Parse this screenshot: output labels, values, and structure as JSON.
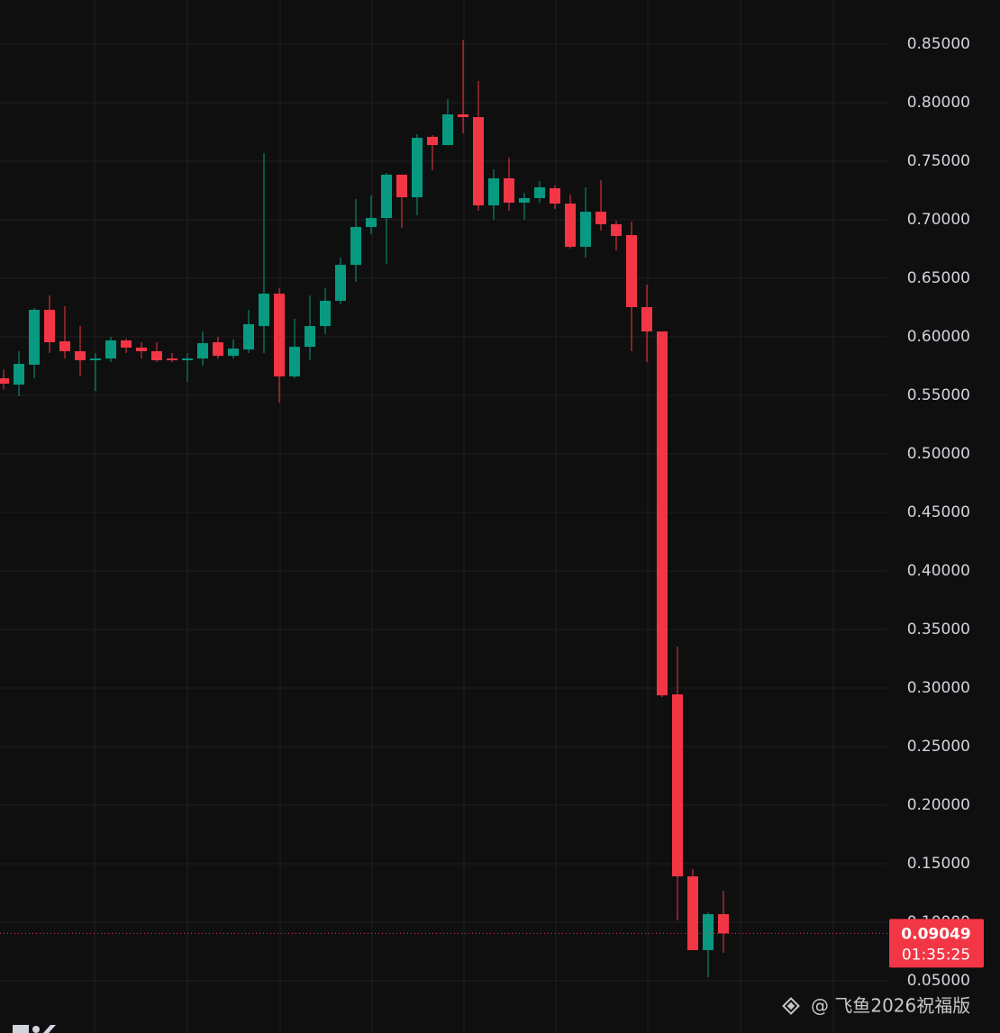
{
  "chart_data": {
    "type": "candlestick",
    "categories": [
      null,
      null,
      null,
      null,
      null,
      null,
      null,
      null,
      null,
      null,
      null,
      null,
      null,
      null,
      null,
      null,
      null,
      null,
      null,
      null,
      null,
      null,
      null,
      null,
      null,
      null,
      null,
      null,
      null,
      null,
      null,
      null,
      null,
      null,
      null,
      null,
      null,
      null,
      null,
      null,
      null,
      null,
      null,
      null,
      null,
      null,
      null,
      null
    ],
    "open": [
      0.5646,
      0.5592,
      0.5762,
      0.6231,
      0.5962,
      0.5877,
      0.58,
      0.5815,
      0.5969,
      0.5908,
      0.5877,
      0.5815,
      0.58,
      0.5815,
      0.5954,
      0.5838,
      0.5892,
      0.6092,
      0.6369,
      0.5662,
      0.5915,
      0.6092,
      0.6308,
      0.6615,
      0.6938,
      0.7015,
      0.7385,
      0.7192,
      0.7708,
      0.7638,
      0.79,
      0.7877,
      0.7123,
      0.7354,
      0.7146,
      0.7185,
      0.7269,
      0.7138,
      0.6769,
      0.7069,
      0.6962,
      0.6869,
      0.6254,
      0.6046,
      0.2946,
      0.1392,
      0.0762,
      0.1069
    ],
    "high": [
      0.572,
      0.5877,
      0.6246,
      0.6354,
      0.6262,
      0.6092,
      0.5862,
      0.6,
      0.5985,
      0.5954,
      0.5954,
      0.5862,
      0.5862,
      0.6046,
      0.6,
      0.5977,
      0.6231,
      0.7569,
      0.6415,
      0.6154,
      0.6354,
      0.6415,
      0.6677,
      0.7177,
      0.7208,
      0.74,
      0.7385,
      0.7731,
      0.7723,
      0.8031,
      0.8538,
      0.8185,
      0.7431,
      0.7531,
      0.7231,
      0.7331,
      0.7292,
      0.7215,
      0.7277,
      0.7338,
      0.6992,
      0.6985,
      0.6446,
      0.6046,
      0.3354,
      0.1454,
      0.1085,
      0.1269
    ],
    "low": [
      0.555,
      0.5492,
      0.5646,
      0.5862,
      0.5815,
      0.5662,
      0.5538,
      0.5785,
      0.5862,
      0.5815,
      0.5785,
      0.5785,
      0.5615,
      0.5754,
      0.5815,
      0.5815,
      0.5862,
      0.5862,
      0.5438,
      0.5646,
      0.58,
      0.6023,
      0.6277,
      0.6469,
      0.6877,
      0.6623,
      0.6931,
      0.7038,
      0.7423,
      0.7638,
      0.7738,
      0.7077,
      0.7,
      0.7077,
      0.7,
      0.7146,
      0.7092,
      0.6754,
      0.6677,
      0.6908,
      0.6738,
      0.5877,
      0.5785,
      0.2923,
      0.1015,
      0.0762,
      0.053,
      0.0738
    ],
    "close": [
      0.56,
      0.5769,
      0.6231,
      0.5954,
      0.5877,
      0.58,
      0.5815,
      0.5969,
      0.5908,
      0.5877,
      0.58,
      0.58,
      0.5815,
      0.5946,
      0.5838,
      0.59,
      0.6108,
      0.6369,
      0.5662,
      0.5915,
      0.6092,
      0.6308,
      0.6615,
      0.6938,
      0.7015,
      0.7385,
      0.7192,
      0.77,
      0.7638,
      0.79,
      0.7877,
      0.7123,
      0.7354,
      0.7146,
      0.7185,
      0.7277,
      0.7138,
      0.6769,
      0.7069,
      0.6962,
      0.6862,
      0.6254,
      0.6046,
      0.2938,
      0.1392,
      0.0762,
      0.1069,
      0.09049
    ],
    "up_color": "#089981",
    "down_color": "#f23645",
    "ylim": [
      0.0054,
      0.8877
    ],
    "yticks": [
      {
        "value": 0.05,
        "label": "0.05000"
      },
      {
        "value": 0.1,
        "label": "0.10000"
      },
      {
        "value": 0.15,
        "label": "0.15000"
      },
      {
        "value": 0.2,
        "label": "0.20000"
      },
      {
        "value": 0.25,
        "label": "0.25000"
      },
      {
        "value": 0.3,
        "label": "0.30000"
      },
      {
        "value": 0.35,
        "label": "0.35000"
      },
      {
        "value": 0.4,
        "label": "0.40000"
      },
      {
        "value": 0.45,
        "label": "0.45000"
      },
      {
        "value": 0.5,
        "label": "0.50000"
      },
      {
        "value": 0.55,
        "label": "0.55000"
      },
      {
        "value": 0.6,
        "label": "0.60000"
      },
      {
        "value": 0.65,
        "label": "0.65000"
      },
      {
        "value": 0.7,
        "label": "0.70000"
      },
      {
        "value": 0.75,
        "label": "0.75000"
      },
      {
        "value": 0.8,
        "label": "0.80000"
      },
      {
        "value": 0.85,
        "label": "0.85000"
      }
    ],
    "grid": true,
    "price_tag": {
      "value": 0.09049,
      "countdown": "01:35:25"
    },
    "watermark": "@ 飞鱼2026祝福版"
  }
}
